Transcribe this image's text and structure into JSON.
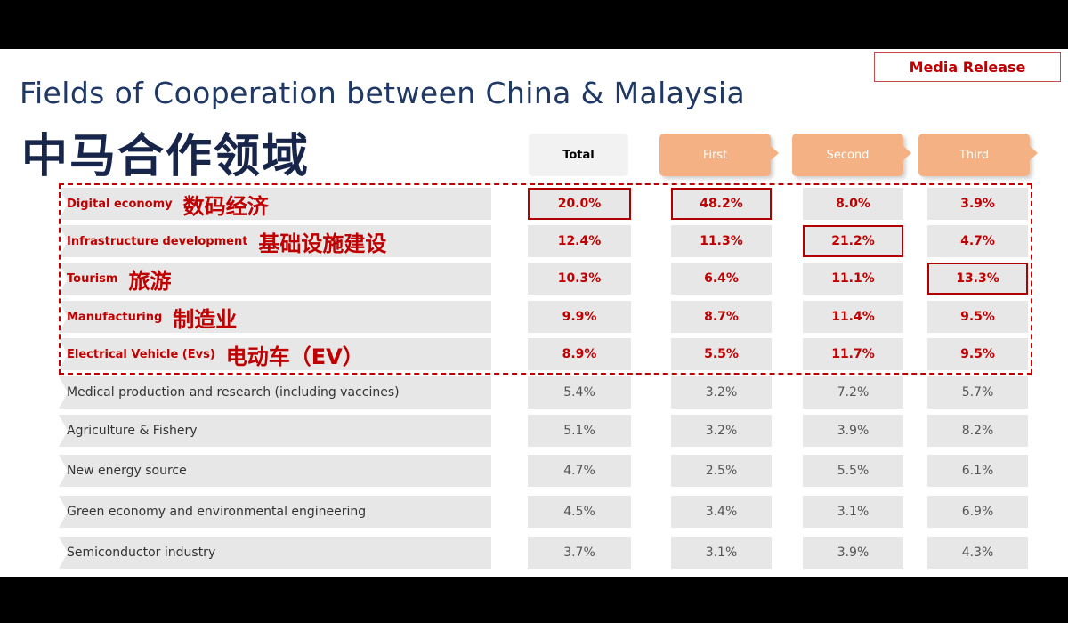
{
  "badge": "Media Release",
  "title_en": "Fields of Cooperation between China & Malaysia",
  "title_zh": "中马合作领域",
  "columns": [
    "Total",
    "First",
    "Second",
    "Third"
  ],
  "rows": [
    {
      "label": "Digital economy",
      "label_zh": "数码经济",
      "values": [
        "20.0%",
        "48.2%",
        "8.0%",
        "3.9%"
      ],
      "highlight": true,
      "boxed": [
        0,
        1
      ]
    },
    {
      "label": "Infrastructure development",
      "label_zh": "基础设施建设",
      "values": [
        "12.4%",
        "11.3%",
        "21.2%",
        "4.7%"
      ],
      "highlight": true,
      "boxed": [
        2
      ]
    },
    {
      "label": "Tourism",
      "label_zh": "旅游",
      "values": [
        "10.3%",
        "6.4%",
        "11.1%",
        "13.3%"
      ],
      "highlight": true,
      "boxed": [
        3
      ]
    },
    {
      "label": "Manufacturing",
      "label_zh": "制造业",
      "values": [
        "9.9%",
        "8.7%",
        "11.4%",
        "9.5%"
      ],
      "highlight": true,
      "boxed": []
    },
    {
      "label": "Electrical Vehicle (Evs)",
      "label_zh": "电动车（EV）",
      "values": [
        "8.9%",
        "5.5%",
        "11.7%",
        "9.5%"
      ],
      "highlight": true,
      "boxed": []
    },
    {
      "label": "Medical production and research (including vaccines)",
      "label_zh": "",
      "values": [
        "5.4%",
        "3.2%",
        "7.2%",
        "5.7%"
      ],
      "highlight": false,
      "boxed": []
    },
    {
      "label": "Agriculture & Fishery",
      "label_zh": "",
      "values": [
        "5.1%",
        "3.2%",
        "3.9%",
        "8.2%"
      ],
      "highlight": false,
      "boxed": []
    },
    {
      "label": "New energy source",
      "label_zh": "",
      "values": [
        "4.7%",
        "2.5%",
        "5.5%",
        "6.1%"
      ],
      "highlight": false,
      "boxed": []
    },
    {
      "label": "Green economy and environmental engineering",
      "label_zh": "",
      "values": [
        "4.5%",
        "3.4%",
        "3.1%",
        "6.9%"
      ],
      "highlight": false,
      "boxed": []
    },
    {
      "label": "Semiconductor industry",
      "label_zh": "",
      "values": [
        "3.7%",
        "3.1%",
        "3.9%",
        "4.3%"
      ],
      "highlight": false,
      "boxed": []
    }
  ],
  "colors": {
    "accent_red": "#c00000",
    "header_orange": "#f4b183",
    "row_gray": "#e7e7e7",
    "title_blue": "#1f3864"
  }
}
